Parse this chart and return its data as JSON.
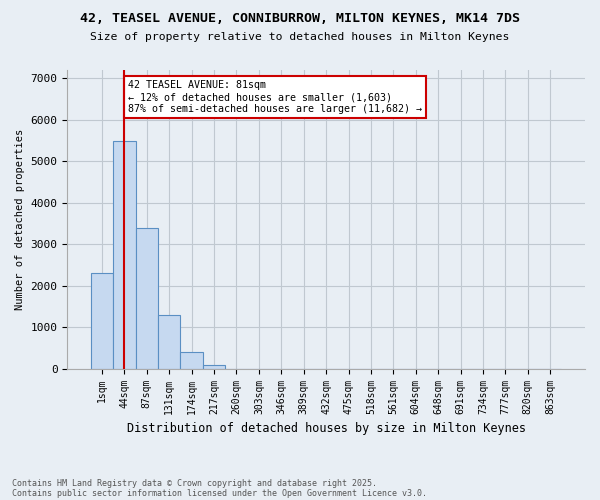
{
  "title1": "42, TEASEL AVENUE, CONNIBURROW, MILTON KEYNES, MK14 7DS",
  "title2": "Size of property relative to detached houses in Milton Keynes",
  "xlabel": "Distribution of detached houses by size in Milton Keynes",
  "ylabel": "Number of detached properties",
  "bar_labels": [
    "1sqm",
    "44sqm",
    "87sqm",
    "131sqm",
    "174sqm",
    "217sqm",
    "260sqm",
    "303sqm",
    "346sqm",
    "389sqm",
    "432sqm",
    "475sqm",
    "518sqm",
    "561sqm",
    "604sqm",
    "648sqm",
    "691sqm",
    "734sqm",
    "777sqm",
    "820sqm",
    "863sqm"
  ],
  "bar_values": [
    2300,
    5500,
    3400,
    1300,
    400,
    100,
    0,
    0,
    0,
    0,
    0,
    0,
    0,
    0,
    0,
    0,
    0,
    0,
    0,
    0,
    0
  ],
  "bar_color": "#c6d9f0",
  "bar_edge_color": "#5a8fc3",
  "vline_x": 1,
  "vline_color": "#cc0000",
  "annotation_text": "42 TEASEL AVENUE: 81sqm\n← 12% of detached houses are smaller (1,603)\n87% of semi-detached houses are larger (11,682) →",
  "ylim": [
    0,
    7200
  ],
  "yticks": [
    0,
    1000,
    2000,
    3000,
    4000,
    5000,
    6000,
    7000
  ],
  "grid_color": "#c0c8d0",
  "background_color": "#e8eef4",
  "footnote1": "Contains HM Land Registry data © Crown copyright and database right 2025.",
  "footnote2": "Contains public sector information licensed under the Open Government Licence v3.0."
}
